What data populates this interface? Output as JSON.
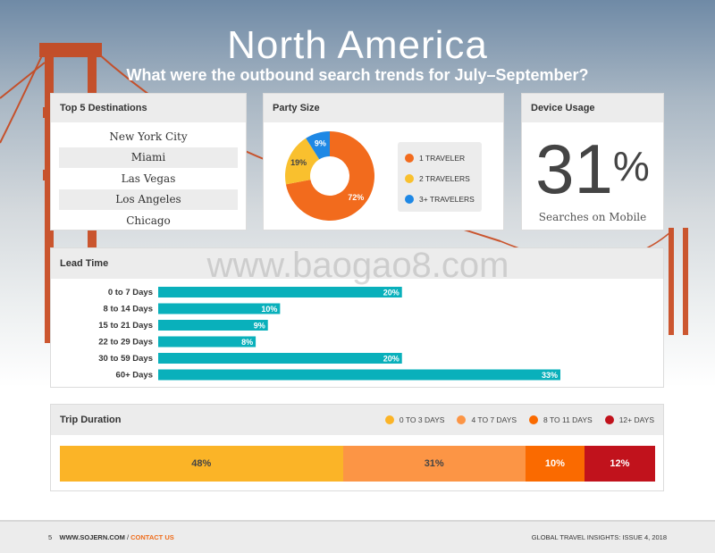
{
  "header": {
    "title": "North America",
    "subtitle": "What were the outbound search trends for July–September?"
  },
  "destinations": {
    "heading": "Top 5 Destinations",
    "items": [
      "New York City",
      "Miami",
      "Las Vegas",
      "Los Angeles",
      "Chicago"
    ]
  },
  "party_size": {
    "heading": "Party Size",
    "slices": [
      {
        "label": "1 TRAVELER",
        "value": 72,
        "display": "72%",
        "color": "#f26b1d"
      },
      {
        "label": "2 TRAVELERS",
        "value": 19,
        "display": "19%",
        "color": "#f9c02e"
      },
      {
        "label": "3+ TRAVELERS",
        "value": 9,
        "display": "9%",
        "color": "#1e88e5"
      }
    ]
  },
  "device_usage": {
    "heading": "Device Usage",
    "value": "31",
    "unit": "%",
    "caption": "Searches on Mobile"
  },
  "watermark": "www.baogao8.com",
  "lead_time": {
    "heading": "Lead Time"
  },
  "trip_duration": {
    "heading": "Trip Duration",
    "segments": [
      {
        "label": "0 TO 3 DAYS",
        "value": 48,
        "display": "48%",
        "color": "#fbb427",
        "text_color": "#444444"
      },
      {
        "label": "4 TO 7 DAYS",
        "value": 31,
        "display": "31%",
        "color": "#fc9545",
        "text_color": "#444444"
      },
      {
        "label": "8 TO 11 DAYS",
        "value": 10,
        "display": "10%",
        "color": "#fa6a00",
        "text_color": "#ffffff"
      },
      {
        "label": "12+ DAYS",
        "value": 12,
        "display": "12%",
        "color": "#c1121c",
        "text_color": "#ffffff"
      }
    ]
  },
  "chart_data": [
    {
      "type": "pie",
      "title": "Party Size",
      "categories": [
        "1 TRAVELER",
        "2 TRAVELERS",
        "3+ TRAVELERS"
      ],
      "values": [
        72,
        19,
        9
      ]
    },
    {
      "type": "bar",
      "orientation": "horizontal",
      "title": "Lead Time",
      "categories": [
        "0 to 7 Days",
        "8 to 14 Days",
        "15 to 21 Days",
        "22 to 29 Days",
        "30 to 59 Days",
        "60+ Days"
      ],
      "values": [
        20,
        10,
        9,
        8,
        20,
        33
      ],
      "labels": [
        "20%",
        "10%",
        "9%",
        "8%",
        "20%",
        "33%"
      ],
      "xlim": [
        0,
        33
      ],
      "bar_color": "#09b0bb"
    },
    {
      "type": "bar",
      "orientation": "stacked-horizontal",
      "title": "Trip Duration",
      "categories": [
        "0 TO 3 DAYS",
        "4 TO 7 DAYS",
        "8 TO 11 DAYS",
        "12+ DAYS"
      ],
      "values": [
        48,
        31,
        10,
        12
      ]
    }
  ],
  "footer": {
    "page": "5",
    "site": "WWW.SOJERN.COM",
    "separator": "/",
    "contact": "CONTACT US",
    "issue": "GLOBAL TRAVEL INSIGHTS: ISSUE 4, 2018"
  }
}
